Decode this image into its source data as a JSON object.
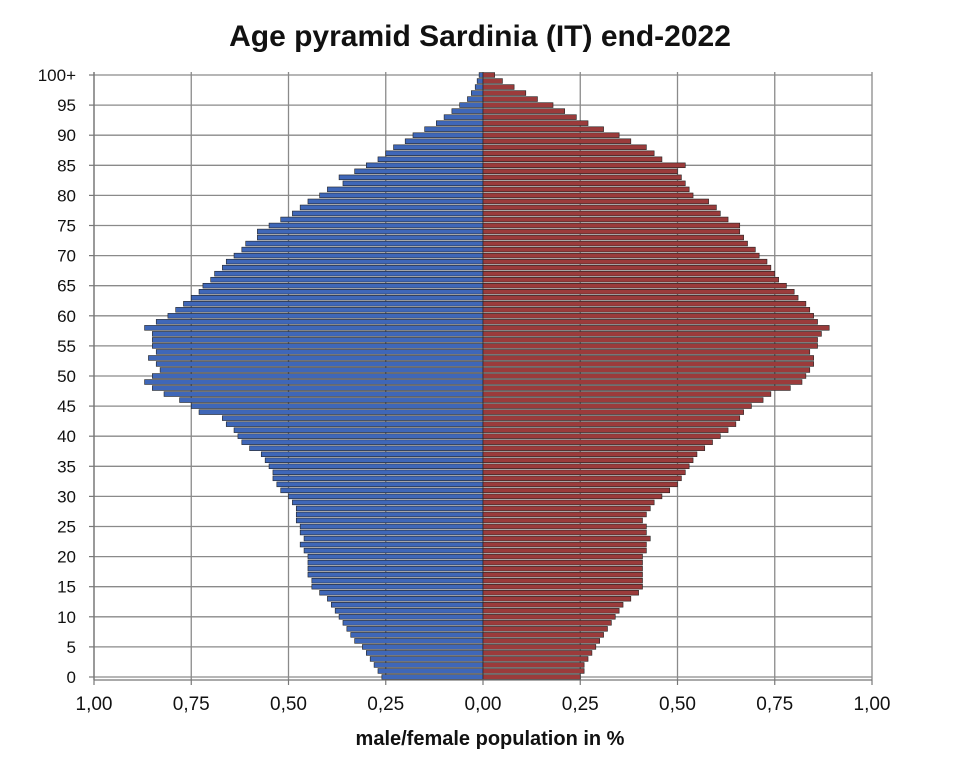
{
  "chart_data": {
    "type": "bar",
    "title": "Age pyramid Sardinia (IT) end-2022",
    "xlabel": "male/female population  in %",
    "ylabel": "",
    "xlim": [
      -1.0,
      1.0
    ],
    "x_ticks": [
      {
        "value": -1.0,
        "label": "1,00"
      },
      {
        "value": -0.75,
        "label": "0,75"
      },
      {
        "value": -0.5,
        "label": "0,50"
      },
      {
        "value": -0.25,
        "label": "0,25"
      },
      {
        "value": 0.0,
        "label": "0,00"
      },
      {
        "value": 0.25,
        "label": "0,25"
      },
      {
        "value": 0.5,
        "label": "0,50"
      },
      {
        "value": 0.75,
        "label": "0,75"
      },
      {
        "value": 1.0,
        "label": "1,00"
      }
    ],
    "y_ticks": [
      {
        "age": 0,
        "label": "0"
      },
      {
        "age": 5,
        "label": "5"
      },
      {
        "age": 10,
        "label": "10"
      },
      {
        "age": 15,
        "label": "15"
      },
      {
        "age": 20,
        "label": "20"
      },
      {
        "age": 25,
        "label": "25"
      },
      {
        "age": 30,
        "label": "30"
      },
      {
        "age": 35,
        "label": "35"
      },
      {
        "age": 40,
        "label": "40"
      },
      {
        "age": 45,
        "label": "45"
      },
      {
        "age": 50,
        "label": "50"
      },
      {
        "age": 55,
        "label": "55"
      },
      {
        "age": 60,
        "label": "60"
      },
      {
        "age": 65,
        "label": "65"
      },
      {
        "age": 70,
        "label": "70"
      },
      {
        "age": 75,
        "label": "75"
      },
      {
        "age": 80,
        "label": "80"
      },
      {
        "age": 85,
        "label": "85"
      },
      {
        "age": 90,
        "label": "90"
      },
      {
        "age": 95,
        "label": "95"
      },
      {
        "age": 100,
        "label": "100+"
      }
    ],
    "grid": true,
    "ages": [
      0,
      1,
      2,
      3,
      4,
      5,
      6,
      7,
      8,
      9,
      10,
      11,
      12,
      13,
      14,
      15,
      16,
      17,
      18,
      19,
      20,
      21,
      22,
      23,
      24,
      25,
      26,
      27,
      28,
      29,
      30,
      31,
      32,
      33,
      34,
      35,
      36,
      37,
      38,
      39,
      40,
      41,
      42,
      43,
      44,
      45,
      46,
      47,
      48,
      49,
      50,
      51,
      52,
      53,
      54,
      55,
      56,
      57,
      58,
      59,
      60,
      61,
      62,
      63,
      64,
      65,
      66,
      67,
      68,
      69,
      70,
      71,
      72,
      73,
      74,
      75,
      76,
      77,
      78,
      79,
      80,
      81,
      82,
      83,
      84,
      85,
      86,
      87,
      88,
      89,
      90,
      91,
      92,
      93,
      94,
      95,
      96,
      97,
      98,
      99,
      100
    ],
    "series": [
      {
        "name": "male",
        "color": "#3f67b8",
        "values": [
          0.26,
          0.27,
          0.28,
          0.29,
          0.3,
          0.31,
          0.33,
          0.34,
          0.35,
          0.36,
          0.37,
          0.38,
          0.39,
          0.4,
          0.42,
          0.44,
          0.44,
          0.45,
          0.45,
          0.45,
          0.45,
          0.46,
          0.47,
          0.46,
          0.47,
          0.47,
          0.48,
          0.48,
          0.48,
          0.49,
          0.5,
          0.52,
          0.53,
          0.54,
          0.54,
          0.55,
          0.56,
          0.57,
          0.6,
          0.62,
          0.63,
          0.64,
          0.66,
          0.67,
          0.73,
          0.75,
          0.78,
          0.82,
          0.85,
          0.87,
          0.85,
          0.83,
          0.84,
          0.86,
          0.84,
          0.85,
          0.85,
          0.85,
          0.87,
          0.84,
          0.81,
          0.79,
          0.77,
          0.75,
          0.73,
          0.72,
          0.7,
          0.69,
          0.67,
          0.66,
          0.64,
          0.62,
          0.61,
          0.58,
          0.58,
          0.55,
          0.52,
          0.49,
          0.47,
          0.45,
          0.42,
          0.4,
          0.36,
          0.37,
          0.33,
          0.3,
          0.27,
          0.25,
          0.23,
          0.2,
          0.18,
          0.15,
          0.12,
          0.1,
          0.08,
          0.06,
          0.04,
          0.03,
          0.02,
          0.015,
          0.01
        ]
      },
      {
        "name": "female",
        "color": "#9b3b3b",
        "values": [
          0.25,
          0.26,
          0.26,
          0.27,
          0.28,
          0.29,
          0.3,
          0.31,
          0.32,
          0.33,
          0.34,
          0.35,
          0.36,
          0.38,
          0.4,
          0.41,
          0.41,
          0.41,
          0.41,
          0.41,
          0.41,
          0.42,
          0.42,
          0.43,
          0.42,
          0.42,
          0.41,
          0.42,
          0.43,
          0.44,
          0.46,
          0.48,
          0.5,
          0.51,
          0.52,
          0.53,
          0.54,
          0.55,
          0.57,
          0.59,
          0.61,
          0.63,
          0.65,
          0.66,
          0.67,
          0.69,
          0.72,
          0.74,
          0.79,
          0.82,
          0.83,
          0.84,
          0.85,
          0.85,
          0.84,
          0.86,
          0.86,
          0.87,
          0.89,
          0.86,
          0.85,
          0.84,
          0.83,
          0.81,
          0.8,
          0.78,
          0.76,
          0.75,
          0.74,
          0.73,
          0.71,
          0.7,
          0.68,
          0.67,
          0.66,
          0.66,
          0.63,
          0.61,
          0.6,
          0.58,
          0.54,
          0.53,
          0.52,
          0.51,
          0.5,
          0.52,
          0.46,
          0.44,
          0.42,
          0.38,
          0.35,
          0.31,
          0.27,
          0.24,
          0.21,
          0.18,
          0.14,
          0.11,
          0.08,
          0.05,
          0.03
        ]
      }
    ]
  }
}
